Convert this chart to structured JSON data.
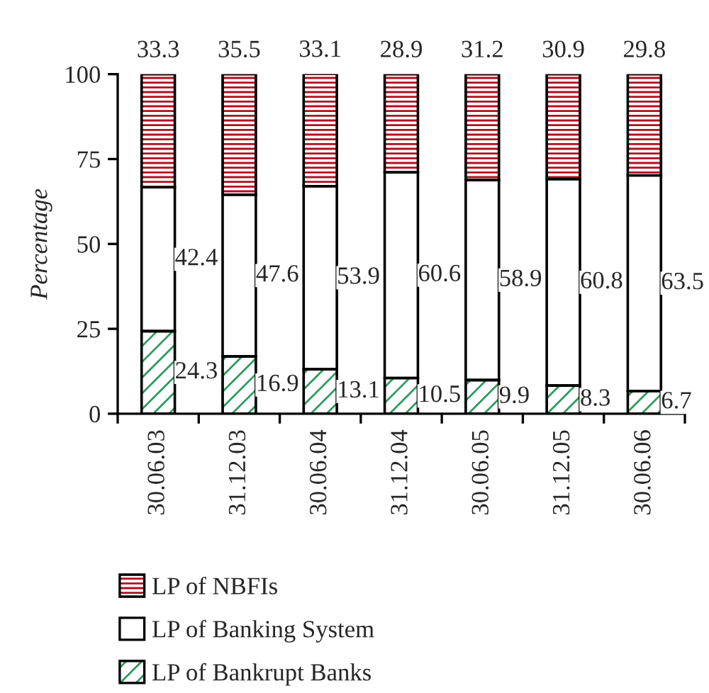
{
  "chart_data": {
    "type": "bar",
    "stacked": true,
    "ylabel": "Percentage",
    "categories": [
      "30.06.03",
      "31.12.03",
      "30.06.04",
      "31.12.04",
      "30.06.05",
      "31.12.05",
      "30.06.06"
    ],
    "series": [
      {
        "name": "LP of Bankrupt Banks",
        "color": "#2e9b5f",
        "values": [
          24.3,
          16.9,
          13.1,
          10.5,
          9.9,
          8.3,
          6.7
        ]
      },
      {
        "name": "LP of Banking System",
        "color": "#ffffff",
        "values": [
          42.4,
          47.6,
          53.9,
          60.6,
          58.9,
          60.8,
          63.5
        ]
      },
      {
        "name": "LP of NBFIs",
        "color": "#b01020",
        "values": [
          33.3,
          35.5,
          33.1,
          28.9,
          31.2,
          30.9,
          29.8
        ]
      }
    ],
    "ylim": [
      0,
      100
    ],
    "yticks": [
      0,
      25,
      50,
      75,
      100
    ],
    "grid": false,
    "legend": "bottom",
    "data_labels": true
  }
}
